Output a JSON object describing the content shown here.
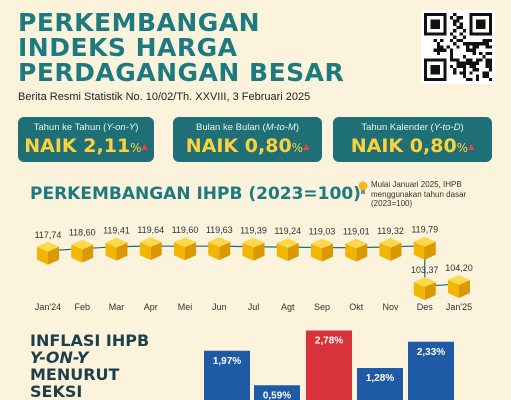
{
  "header": {
    "title_lines": [
      "PERKEMBANGAN",
      "INDEKS HARGA",
      "PERDAGANGAN BESAR"
    ],
    "subtitle": "Berita Resmi Statistik No. 10/02/Th. XXVIII, 3 Februari 2025"
  },
  "cards": [
    {
      "label_prefix": "Tahun ke Tahun (",
      "label_italic": "Y-on-Y",
      "label_suffix": ")",
      "status": "NAIK",
      "value": "2,11",
      "unit": "%"
    },
    {
      "label_prefix": "Bulan ke Bulan (",
      "label_italic": "M-to-M",
      "label_suffix": ")",
      "status": "NAIK",
      "value": "0,80",
      "unit": "%"
    },
    {
      "label_prefix": "Tahun Kalender (",
      "label_italic": "Y-to-D",
      "label_suffix": ")",
      "status": "NAIK",
      "value": "0,80",
      "unit": "%"
    }
  ],
  "ihpb": {
    "title": "PERKEMBANGAN IHPB (2023=100)",
    "note": "Mulai Januari 2025, IHPB menggunakan tahun dasar (2023=100)"
  },
  "inflasi": {
    "title_line1": "INFLASI IHPB",
    "title_line2": "Y-ON-Y",
    "title_line3": "MENURUT",
    "title_line4": "SEKSI"
  },
  "colors": {
    "background": "#fbf3dc",
    "teal": "#1e6f76",
    "yellow": "#ffd23d",
    "cube_top": "#ffd84a",
    "cube_left": "#f2b600",
    "cube_right": "#dc9800",
    "bar_blue": "#1f5aa6",
    "bar_red": "#d8333a",
    "up_arrow": "#e8463a"
  },
  "icons": [
    "qr-code-icon",
    "lightbulb-icon",
    "up-arrow-icon"
  ],
  "chart_data": [
    {
      "type": "line",
      "title": "PERKEMBANGAN IHPB (2023=100)",
      "categories": [
        "Jan'24",
        "Feb",
        "Mar",
        "Apr",
        "Mei",
        "Jun",
        "Jul",
        "Agt",
        "Sep",
        "Okt",
        "Nov",
        "Des",
        "Jan'25"
      ],
      "values": [
        117.74,
        118.6,
        119.41,
        119.64,
        119.6,
        119.63,
        119.39,
        119.24,
        119.03,
        119.01,
        119.32,
        119.79,
        104.2
      ],
      "extra_points": [
        {
          "x": "Des",
          "value": 103.37
        }
      ],
      "labels": [
        "117,74",
        "118,60",
        "119,41",
        "119,64",
        "119,60",
        "119,63",
        "119,39",
        "119,24",
        "119,03",
        "119,01",
        "119,32",
        "119,79",
        "104,20"
      ],
      "extra_labels": [
        "103,37"
      ],
      "grid": false
    },
    {
      "type": "bar",
      "title": "INFLASI IHPB Y-ON-Y MENURUT SEKSI",
      "values": [
        1.97,
        0.59,
        2.78,
        1.28,
        2.33
      ],
      "labels": [
        "1,97%",
        "0,59%",
        "2,78%",
        "1,28%",
        "2,33%"
      ],
      "colors": [
        "#1f5aa6",
        "#1f5aa6",
        "#d8333a",
        "#1f5aa6",
        "#1f5aa6"
      ]
    }
  ]
}
